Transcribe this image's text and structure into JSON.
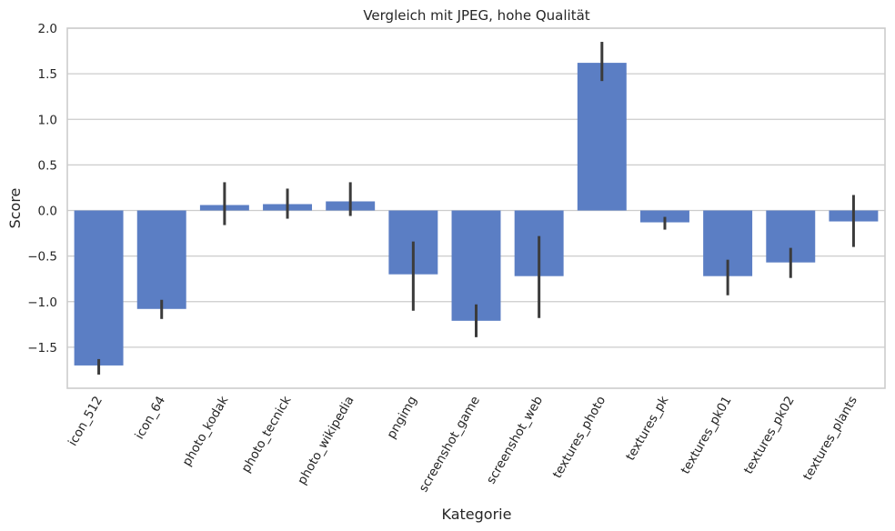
{
  "chart_data": {
    "type": "bar",
    "title": "Vergleich mit JPEG, hohe Qualität",
    "xlabel": "Kategorie",
    "ylabel": "Score",
    "ylim": [
      -1.95,
      2.0
    ],
    "yticks": [
      2.0,
      1.5,
      1.0,
      0.5,
      0.0,
      -0.5,
      -1.0,
      -1.5
    ],
    "ytick_labels": [
      "2.0",
      "1.5",
      "1.0",
      "0.5",
      "0.0",
      "−0.5",
      "−1.0",
      "−1.5"
    ],
    "grid": true,
    "bar_color": "#5b7ec4",
    "error_color": "#3b3b3b",
    "categories": [
      "icon_512",
      "icon_64",
      "photo_kodak",
      "photo_tecnick",
      "photo_wikipedia",
      "pngimg",
      "screenshot_game",
      "screenshot_web",
      "textures_photo",
      "textures_pk",
      "textures_pk01",
      "textures_pk02",
      "textures_plants"
    ],
    "values": [
      -1.7,
      -1.08,
      0.06,
      0.07,
      0.1,
      -0.7,
      -1.21,
      -0.72,
      1.62,
      -0.13,
      -0.72,
      -0.57,
      -0.12
    ],
    "error_low": [
      -1.8,
      -1.19,
      -0.16,
      -0.09,
      -0.06,
      -1.1,
      -1.39,
      -1.18,
      1.42,
      -0.21,
      -0.93,
      -0.74,
      -0.4
    ],
    "error_high": [
      -1.63,
      -0.98,
      0.31,
      0.24,
      0.31,
      -0.34,
      -1.03,
      -0.28,
      1.85,
      -0.07,
      -0.54,
      -0.41,
      0.17
    ]
  }
}
